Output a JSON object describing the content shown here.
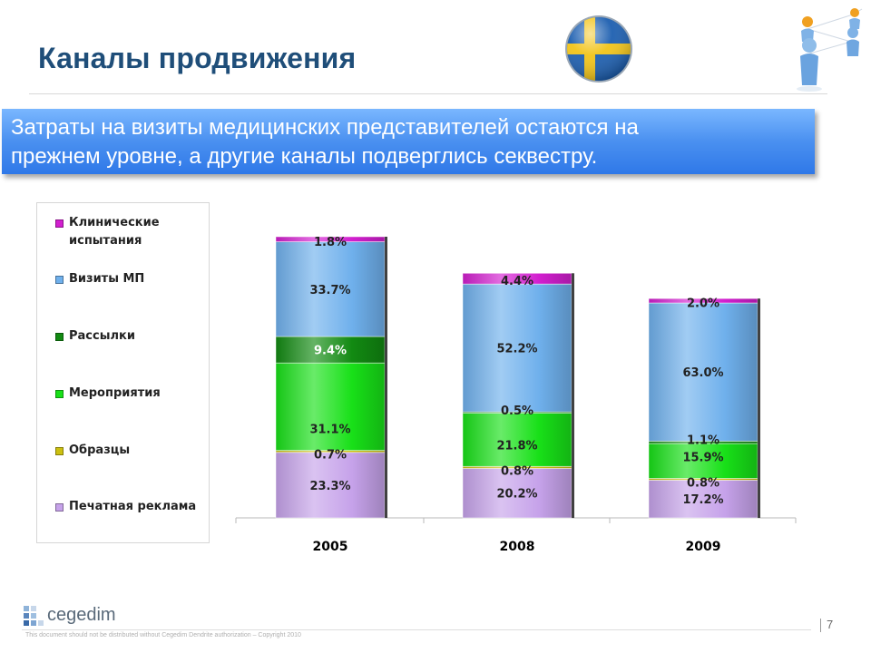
{
  "header": {
    "title": "Каналы продвижения",
    "banner_line1": "Затраты на визиты медицинских представителей остаются на",
    "banner_line2": "прежнем уровне, а другие каналы подверглись секвестру."
  },
  "icons": [
    "sweden-flag-icon",
    "people-network-icon",
    "cegedim-logo-icon"
  ],
  "colors": {
    "title": "#1f4e79",
    "banner": "#3f88f0",
    "clinical": "#d21fcf",
    "visits": "#6fb0ec",
    "mailings": "#128a12",
    "events": "#18e018",
    "samples": "#ccc010",
    "print": "#c6a2ea"
  },
  "legend": [
    {
      "label": "Клинические испытания",
      "color": "#d21fcf"
    },
    {
      "label": "Визиты МП",
      "color": "#6fb0ec"
    },
    {
      "label": "Рассылки",
      "color": "#128a12"
    },
    {
      "label": "Мероприятия",
      "color": "#18e018"
    },
    {
      "label": "Образцы",
      "color": "#ccc010"
    },
    {
      "label": "Печатная реклама",
      "color": "#c6a2ea"
    }
  ],
  "chart_data": {
    "type": "bar",
    "stacked": true,
    "categories": [
      "2005",
      "2008",
      "2009"
    ],
    "series": [
      {
        "name": "Печатная реклама",
        "values": [
          23.3,
          20.2,
          17.2
        ],
        "labels": [
          "23.3%",
          "20.2%",
          "17.2%"
        ]
      },
      {
        "name": "Образцы",
        "values": [
          0.7,
          0.8,
          0.8
        ],
        "labels": [
          "0.7%",
          "0.8%",
          "0.8%"
        ]
      },
      {
        "name": "Мероприятия",
        "values": [
          31.1,
          21.8,
          15.9
        ],
        "labels": [
          "31.1%",
          "21.8%",
          "15.9%"
        ]
      },
      {
        "name": "Рассылки",
        "values": [
          9.4,
          0.5,
          1.1
        ],
        "labels": [
          "9.4%",
          "0.5%",
          "1.1%"
        ]
      },
      {
        "name": "Визиты МП",
        "values": [
          33.7,
          52.2,
          63.0
        ],
        "labels": [
          "33.7%",
          "52.2%",
          "63.0%"
        ]
      },
      {
        "name": "Клинические испытания",
        "values": [
          1.8,
          4.4,
          2.0
        ],
        "labels": [
          "1.8%",
          "4.4%",
          "2.0%"
        ]
      }
    ],
    "relative_totals": [
      100,
      87,
      78
    ],
    "legend_position": "left",
    "grid": false
  },
  "footer": {
    "brand": "cegedim",
    "note": "This document should not be distributed without Cegedim Dendrite authorization – Copyright 2010",
    "page_number": "7"
  }
}
